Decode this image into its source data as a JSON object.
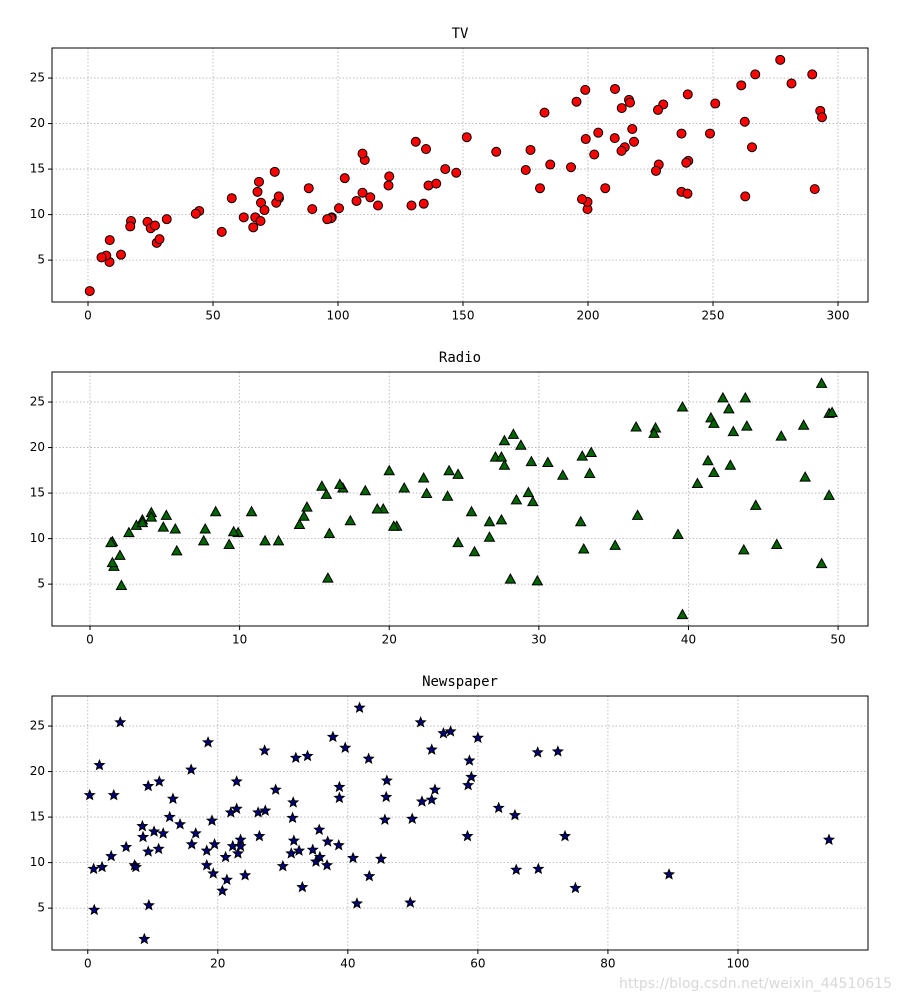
{
  "chart_data": [
    {
      "type": "scatter",
      "title": "TV",
      "marker": "o",
      "color": "#ff0000",
      "edgecolor": "#000000",
      "grid": true,
      "xlim": [
        -14.4,
        312
      ],
      "ylim": [
        0.4,
        28.3
      ],
      "xticks": [
        0,
        50,
        100,
        150,
        200,
        250,
        300
      ],
      "yticks": [
        5,
        10,
        15,
        20,
        25
      ],
      "x": [
        230.1,
        44.5,
        17.2,
        151.5,
        180.8,
        8.7,
        57.5,
        120.2,
        8.6,
        199.8,
        66.1,
        214.7,
        23.8,
        97.5,
        204.1,
        195.4,
        67.8,
        281.4,
        69.2,
        147.3,
        218.4,
        237.4,
        13.2,
        228.3,
        62.3,
        262.9,
        142.9,
        240.1,
        248.8,
        70.6,
        292.9,
        112.9,
        97.2,
        265.6,
        95.7,
        290.7,
        266.9,
        74.7,
        43.1,
        228,
        202.5,
        177,
        293.6,
        206.9,
        25.1,
        175.1,
        89.7,
        239.9,
        227.2,
        66.9,
        199.8,
        100.4,
        216.4,
        182.6,
        262.7,
        198.9,
        7.3,
        136.2,
        210.8,
        210.7,
        53.5,
        261.3,
        239.3,
        102.7,
        131.1,
        69,
        31.5,
        139.3,
        237.4,
        216.8,
        199.1,
        109.8,
        26.8,
        129.4,
        213.4,
        16.9,
        27.5,
        120.5,
        5.4,
        116,
        76.4,
        239.8,
        75.3,
        68.4,
        213.5,
        193.2,
        76.3,
        110.7,
        88.3,
        109.8,
        134.3,
        28.6,
        217.7,
        250.9,
        107.4,
        163.3,
        197.6,
        184.9,
        289.7,
        135.2,
        0.7,
        276.9
      ],
      "y": [
        22.1,
        10.4,
        9.3,
        18.5,
        12.9,
        7.2,
        11.8,
        13.2,
        4.8,
        10.6,
        8.6,
        17.4,
        9.2,
        9.7,
        19,
        22.4,
        12.5,
        24.4,
        11.3,
        14.6,
        18,
        12.5,
        5.6,
        15.5,
        9.7,
        12,
        15,
        15.9,
        18.9,
        10.5,
        21.4,
        11.9,
        9.6,
        17.4,
        9.5,
        12.8,
        25.4,
        14.7,
        10.1,
        21.5,
        16.6,
        17.1,
        20.7,
        12.9,
        8.5,
        14.9,
        10.6,
        23.2,
        14.8,
        9.7,
        11.4,
        10.7,
        22.6,
        21.2,
        20.2,
        23.7,
        5.5,
        13.2,
        23.8,
        18.4,
        8.1,
        24.2,
        15.7,
        14,
        18,
        9.3,
        9.5,
        13.4,
        18.9,
        22.3,
        18.3,
        12.4,
        8.8,
        11,
        17,
        8.7,
        6.9,
        14.2,
        5.3,
        11,
        11.8,
        12.3,
        11.3,
        13.6,
        21.7,
        15.2,
        12,
        16,
        12.9,
        16.7,
        11.2,
        7.3,
        19.4,
        22.2,
        11.5,
        16.9,
        11.7,
        15.5,
        25.4,
        17.2,
        1.6,
        27
      ]
    },
    {
      "type": "scatter",
      "title": "Radio",
      "marker": "^",
      "color": "#006400",
      "edgecolor": "#000000",
      "grid": true,
      "xlim": [
        -2.54,
        52
      ],
      "ylim": [
        0.4,
        28.3
      ],
      "xticks": [
        0,
        10,
        20,
        30,
        40,
        50
      ],
      "yticks": [
        5,
        10,
        15,
        20,
        25
      ],
      "x": [
        37.8,
        39.3,
        45.9,
        41.3,
        10.8,
        48.9,
        32.8,
        19.6,
        2.1,
        2.6,
        5.8,
        24,
        35.1,
        7.6,
        32.9,
        47.7,
        36.6,
        39.6,
        20.5,
        23.9,
        27.7,
        5.1,
        15.9,
        16.9,
        12.6,
        3.5,
        29.3,
        16.7,
        27.1,
        16,
        28.3,
        17.4,
        1.5,
        20,
        1.4,
        4.1,
        43.8,
        49.4,
        26.7,
        37.7,
        22.3,
        33.4,
        27.7,
        8.4,
        25.7,
        22.5,
        9.9,
        41.5,
        15.8,
        11.7,
        3.1,
        9.6,
        41.7,
        46.2,
        28.8,
        49.4,
        28.1,
        19.2,
        49.6,
        29.5,
        2,
        42.7,
        15.5,
        29.6,
        42.8,
        9.3,
        24.6,
        14.5,
        27.5,
        43.9,
        30.6,
        14.3,
        33,
        5.7,
        24.6,
        43.7,
        1.6,
        28.5,
        29.9,
        7.7,
        26.7,
        4.1,
        20.3,
        44.5,
        43,
        18.4,
        27.5,
        40.6,
        25.5,
        47.8,
        4.9,
        1.5,
        33.5,
        36.5,
        14,
        31.6,
        3.5,
        21,
        42.3,
        41.7,
        39.6,
        48.9
      ],
      "y": [
        22.1,
        10.4,
        9.3,
        18.5,
        12.9,
        7.2,
        11.8,
        13.2,
        4.8,
        10.6,
        8.6,
        17.4,
        9.2,
        9.7,
        19,
        22.4,
        12.5,
        24.4,
        11.3,
        14.6,
        18,
        12.5,
        5.6,
        15.5,
        9.7,
        12,
        15,
        15.9,
        18.9,
        10.5,
        21.4,
        11.9,
        9.6,
        17.4,
        9.5,
        12.8,
        25.4,
        14.7,
        10.1,
        21.5,
        16.6,
        17.1,
        20.7,
        12.9,
        8.5,
        14.9,
        10.6,
        23.2,
        14.8,
        9.7,
        11.4,
        10.7,
        22.6,
        21.2,
        20.2,
        23.7,
        5.5,
        13.2,
        23.8,
        18.4,
        8.1,
        24.2,
        15.7,
        14,
        18,
        9.3,
        9.5,
        13.4,
        18.9,
        22.3,
        18.3,
        12.4,
        8.8,
        11,
        17,
        8.7,
        6.9,
        14.2,
        5.3,
        11,
        11.8,
        12.3,
        11.3,
        13.6,
        21.7,
        15.2,
        12,
        16,
        12.9,
        16.7,
        11.2,
        7.3,
        19.4,
        22.2,
        11.5,
        16.9,
        11.7,
        15.5,
        25.4,
        17.2,
        1.6,
        27
      ]
    },
    {
      "type": "scatter",
      "title": "Newspaper",
      "marker": "*",
      "color": "#000080",
      "edgecolor": "#000000",
      "grid": true,
      "xlim": [
        -5.5,
        120
      ],
      "ylim": [
        0.4,
        28.3
      ],
      "xticks": [
        0,
        20,
        40,
        60,
        80,
        100
      ],
      "yticks": [
        5,
        10,
        15,
        20,
        25
      ],
      "x": [
        69.2,
        45.1,
        69.3,
        58.5,
        58.4,
        75,
        23.5,
        11.6,
        1,
        21.2,
        24.2,
        4,
        65.9,
        7.2,
        46,
        52.9,
        114,
        55.8,
        18.3,
        19.1,
        53.4,
        23.5,
        49.6,
        26.2,
        18.3,
        19.5,
        12.6,
        22.9,
        22.9,
        40.8,
        43.2,
        38.6,
        30,
        0.3,
        7.4,
        8.5,
        5,
        45.7,
        35.1,
        32,
        31.6,
        38.7,
        1.8,
        26.4,
        43.3,
        31.5,
        35.7,
        18.5,
        49.9,
        36.8,
        34.6,
        3.6,
        39.6,
        58.7,
        15.9,
        60,
        41.4,
        16.6,
        37.7,
        9.3,
        21.4,
        54.7,
        27.3,
        8.4,
        28.9,
        0.9,
        2.2,
        10.2,
        11,
        27.2,
        38.7,
        31.7,
        19.3,
        31.3,
        13.1,
        89.4,
        20.7,
        14.2,
        9.4,
        23.1,
        22.3,
        36.9,
        32.5,
        35.6,
        33.8,
        65.7,
        16,
        63.2,
        73.4,
        51.4,
        9.3,
        33,
        59,
        72.3,
        10.9,
        52.9,
        5.9,
        22,
        51.2,
        45.9,
        8.7,
        41.8
      ],
      "y": [
        22.1,
        10.4,
        9.3,
        18.5,
        12.9,
        7.2,
        11.8,
        13.2,
        4.8,
        10.6,
        8.6,
        17.4,
        9.2,
        9.7,
        19,
        22.4,
        12.5,
        24.4,
        11.3,
        14.6,
        18,
        12.5,
        5.6,
        15.5,
        9.7,
        12,
        15,
        15.9,
        18.9,
        10.5,
        21.4,
        11.9,
        9.6,
        17.4,
        9.5,
        12.8,
        25.4,
        14.7,
        10.1,
        21.5,
        16.6,
        17.1,
        20.7,
        12.9,
        8.5,
        14.9,
        10.6,
        23.2,
        14.8,
        9.7,
        11.4,
        10.7,
        22.6,
        21.2,
        20.2,
        23.7,
        5.5,
        13.2,
        23.8,
        18.4,
        8.1,
        24.2,
        15.7,
        14,
        18,
        9.3,
        9.5,
        13.4,
        18.9,
        22.3,
        18.3,
        12.4,
        8.8,
        11,
        17,
        8.7,
        6.9,
        14.2,
        5.3,
        11,
        11.8,
        12.3,
        11.3,
        13.6,
        21.7,
        15.2,
        12,
        16,
        12.9,
        16.7,
        11.2,
        7.3,
        19.4,
        22.2,
        11.5,
        16.9,
        11.7,
        15.5,
        25.4,
        17.2,
        1.6,
        27
      ]
    }
  ],
  "watermark": "https://blog.csdn.net/weixin_44510615"
}
